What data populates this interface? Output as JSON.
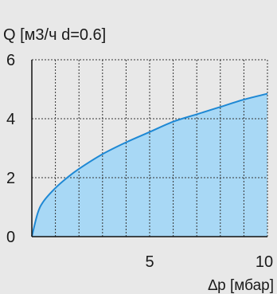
{
  "chart_data": {
    "type": "area",
    "ylabel": "Q [м3/ч d=0.6]",
    "xlabel": "∆p [мбар]",
    "xlim": [
      0,
      10
    ],
    "ylim": [
      0,
      6
    ],
    "x_ticks": [
      5,
      10
    ],
    "y_ticks": [
      0,
      2,
      4,
      6
    ],
    "grid": true,
    "x_grid_step": 1,
    "y_grid_step": 2,
    "series": [
      {
        "x": [
          0,
          0.25,
          0.5,
          1,
          1.5,
          2,
          3,
          4,
          5,
          6,
          7,
          8,
          9,
          10
        ],
        "y": [
          0,
          0.8,
          1.2,
          1.65,
          2.0,
          2.3,
          2.8,
          3.2,
          3.55,
          3.9,
          4.15,
          4.4,
          4.65,
          4.85
        ]
      }
    ],
    "colors": {
      "fill": "#a8d8f5",
      "line": "#1e88d4",
      "grid": "#333333",
      "axis": "#111111"
    }
  }
}
